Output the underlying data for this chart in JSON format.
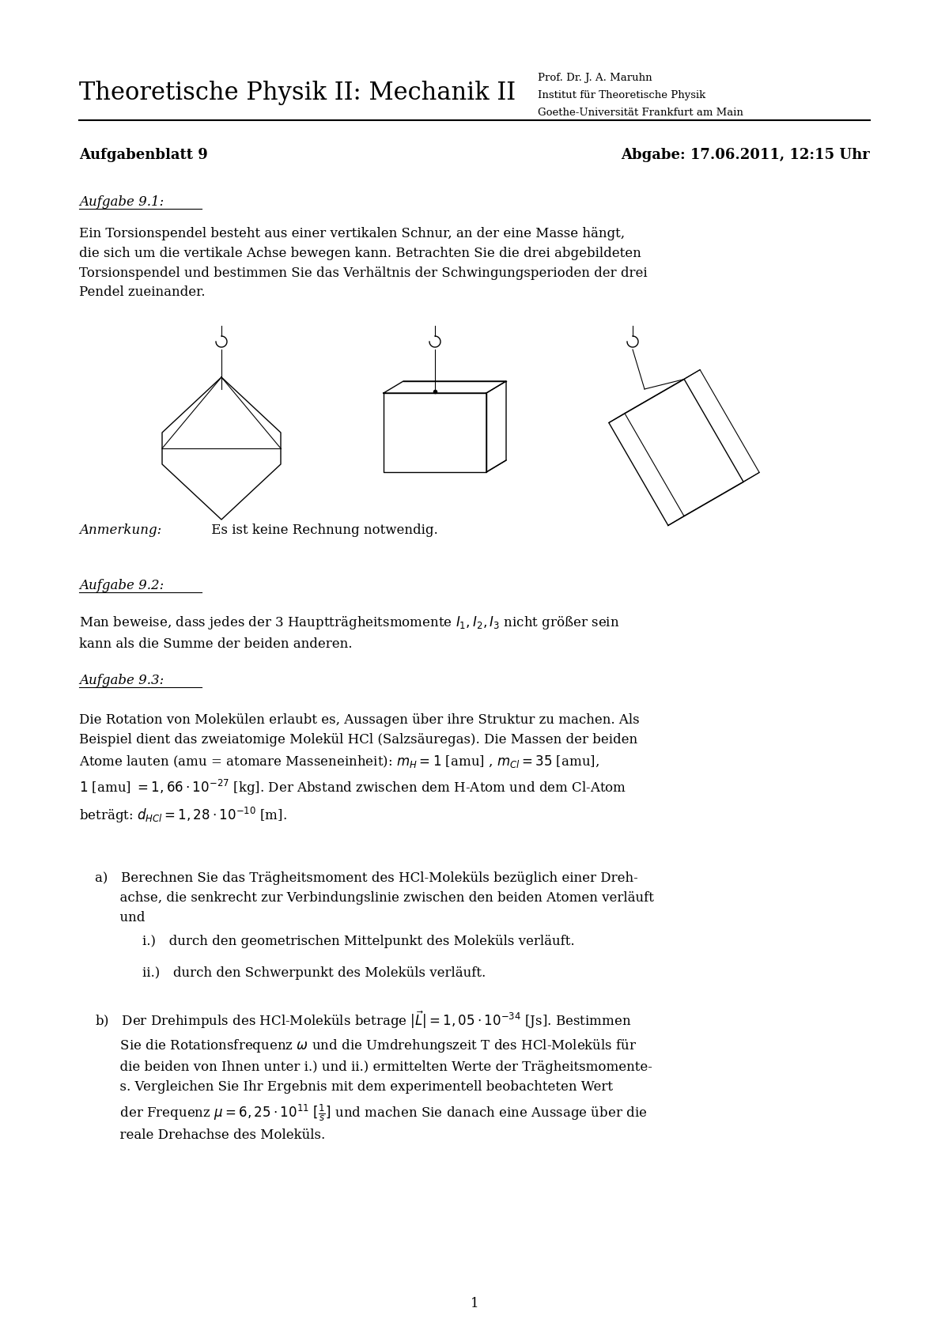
{
  "title_left": "Theoretische Physik II: Mechanik II",
  "title_right_line1": "Prof. Dr. J. A. Maruhn",
  "title_right_line2": "Institut für Theoretische Physik",
  "title_right_line3": "Goethe-Universität Frankfurt am Main",
  "header_left": "Aufgabenblatt 9",
  "header_right": "Abgabe: 17.06.2011, 12:15 Uhr",
  "section1_title": "Aufgabe 9.1:",
  "section1_text": "Ein Torsionspendel besteht aus einer vertikalen Schnur, an der eine Masse hängt,\ndie sich um die vertikale Achse bewegen kann. Betrachten Sie die drei abgebildeten\nTorsionspendel und bestimmen Sie das Verhältnis der Schwingungsperioden der drei\nPendel zueinander.",
  "section1_note": "Anmerkung: Es ist keine Rechnung notwendig.",
  "section2_title": "Aufgabe 9.2:",
  "section2_text": "Man beweise, dass jedes der 3 Hauptträgheitsmomente $I_1, I_2, I_3$ nicht größer sein\nkann als die Summe der beiden anderen.",
  "section3_title": "Aufgabe 9.3:",
  "section3_text_intro": "Die Rotation von Molekülen erlaubt es, Aussagen über ihre Struktur zu machen. Als\nBeispiel dient das zweiatomige Molekül HCl (Salzsäuregas). Die Massen der beiden\nAtome lauten (amu = atomare Masseneinheit): $m_H = 1$ [amu] , $m_{Cl} = 35$ [amu],\n$1$ [amu] $= 1,66 \\cdot 10^{-27}$ [kg]. Der Abstand zwischen dem H-Atom und dem Cl-Atom\nbeträgt: $d_{HCl} = 1,28 \\cdot 10^{-10}$ [m].",
  "section3a_text": "a) Berechnen Sie das Trägheitsmoment des HCl-Moleküls bezüglich einer Dreh-\nachse, die senkrecht zur Verbindungslinie zwischen den beiden Atomen verläuft\nund",
  "section3a_i": "i.) durch den geometrischen Mittelpunkt des Moleküls verläuft.",
  "section3a_ii": "ii.) durch den Schwerpunkt des Moleküls verläuft.",
  "section3b_text": "b) Der Drehimpuls des HCl-Moleküls betrage $|\\vec{L}| = 1,05 \\cdot 10^{-34}$ [Js]. Bestimmen\nSie die Rotationsfrequenz $\\omega$ und die Umdrehungszeit T des HCl-Moleküls für\ndie beiden von Ihnen unter i.) und ii.) ermittelten Werte der Trägheitsmomente-\ns. Vergleichen Sie Ihr Ergebnis mit dem experimentell beobachteten Wert\nder Frequenz $\\mu = 6,25 \\cdot 10^{11}$ $[\\frac{1}{s}]$ und machen Sie danach eine Aussage über die\nreale Drehachse des Moleküls.",
  "page_number": "1",
  "bg_color": "#ffffff",
  "text_color": "#000000"
}
